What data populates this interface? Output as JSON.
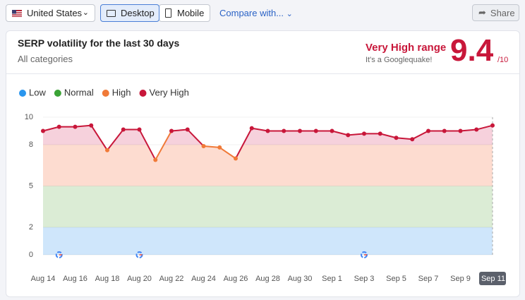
{
  "toolbar": {
    "location": "United States",
    "devices": [
      "Desktop",
      "Mobile"
    ],
    "compare": "Compare with...",
    "share": "Share"
  },
  "card": {
    "range_label": "Very High range",
    "range_note": "It's a Googlequake!",
    "score": "9.4",
    "score_suffix": "/10"
  },
  "chart_data": {
    "type": "line",
    "title": "SERP volatility for the last 30 days",
    "subtitle": "All categories",
    "categories": [
      "Aug 14",
      null,
      "Aug 16",
      null,
      "Aug 18",
      null,
      "Aug 20",
      null,
      "Aug 22",
      null,
      "Aug 24",
      null,
      "Aug 26",
      null,
      "Aug 28",
      null,
      "Aug 30",
      null,
      "Sep 1",
      null,
      "Sep 3",
      null,
      "Sep 5",
      null,
      "Sep 7",
      null,
      "Sep 9",
      null,
      "Sep 11"
    ],
    "values": [
      9.0,
      9.3,
      9.3,
      9.4,
      7.6,
      9.1,
      9.1,
      6.9,
      9.0,
      9.1,
      7.9,
      7.8,
      7.0,
      9.2,
      9.0,
      9.0,
      9.0,
      9.0,
      9.0,
      8.7,
      8.8,
      8.8,
      8.5,
      8.4,
      9.0,
      9.0,
      9.0,
      9.1,
      9.4
    ],
    "ylim": [
      0,
      10
    ],
    "yticks": [
      0,
      2,
      5,
      8,
      10
    ],
    "ranges": [
      {
        "name": "Low",
        "color": "#2a96ee",
        "fill": "#cfe6fb",
        "from": 0,
        "to": 2
      },
      {
        "name": "Normal",
        "color": "#3aa335",
        "fill": "#dbecd5",
        "from": 2,
        "to": 5
      },
      {
        "name": "High",
        "color": "#f07a38",
        "fill": "#fddcd0",
        "from": 5,
        "to": 8
      },
      {
        "name": "Very High",
        "color": "#c8173a",
        "fill": "#f6d1dc",
        "from": 8,
        "to": 10
      }
    ]
  }
}
